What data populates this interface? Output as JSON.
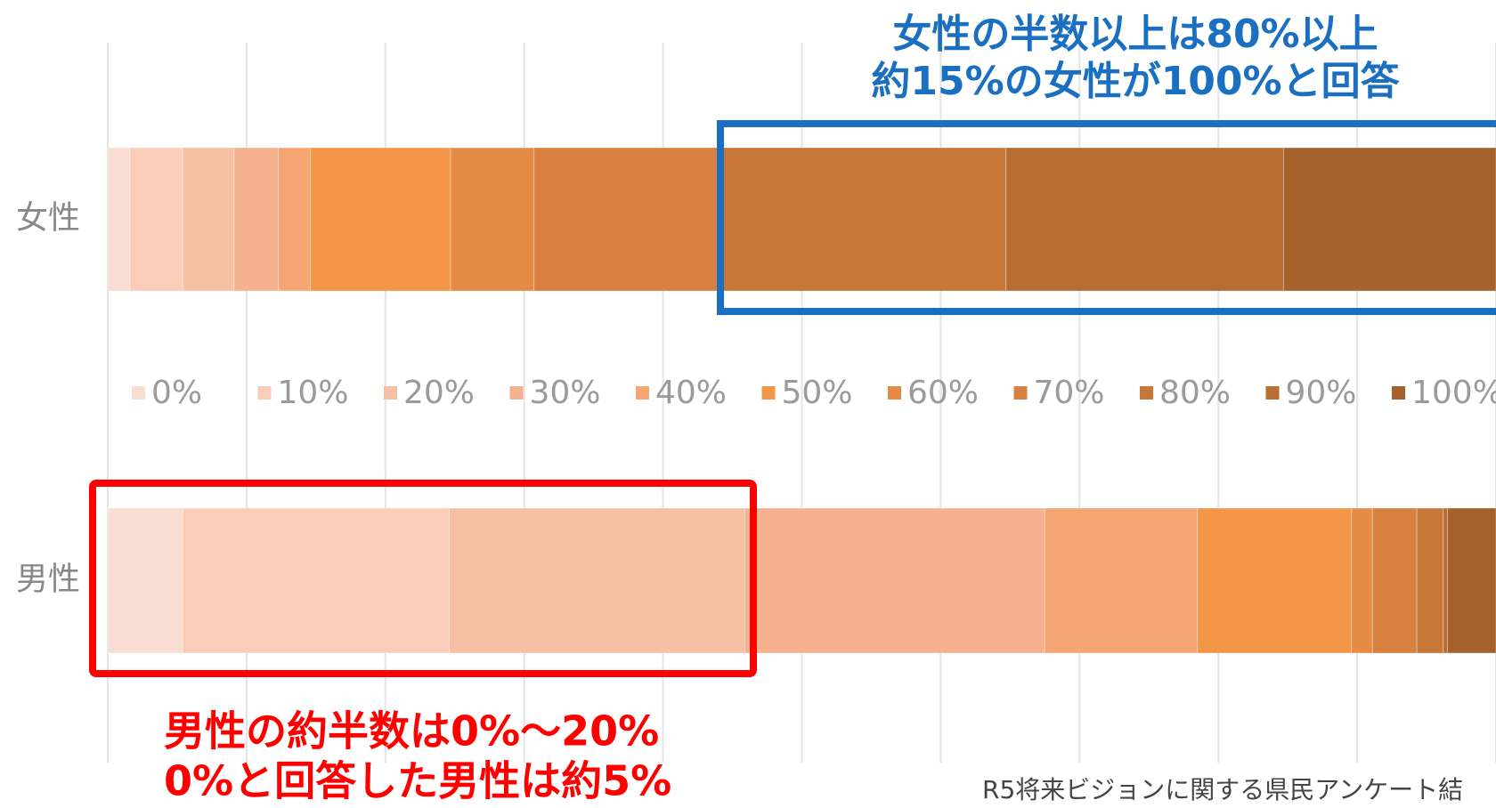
{
  "chart_data": {
    "type": "stacked_barh",
    "categories": [
      "女性",
      "男性"
    ],
    "series": [
      {
        "name": "0%",
        "color": "#f9ddd3",
        "values": [
          1.6,
          5.4
        ]
      },
      {
        "name": "10%",
        "color": "#f9cdb9",
        "values": [
          3.8,
          19.2
        ]
      },
      {
        "name": "20%",
        "color": "#f7c0a5",
        "values": [
          3.7,
          21.3
        ]
      },
      {
        "name": "30%",
        "color": "#f6b28e",
        "values": [
          3.2,
          21.6
        ]
      },
      {
        "name": "40%",
        "color": "#f4a572",
        "values": [
          2.3,
          11.0
        ]
      },
      {
        "name": "50%",
        "color": "#f39647",
        "values": [
          10.1,
          11.1
        ]
      },
      {
        "name": "60%",
        "color": "#e58b45",
        "values": [
          6.0,
          1.5
        ]
      },
      {
        "name": "70%",
        "color": "#d88040",
        "values": [
          13.5,
          3.2
        ]
      },
      {
        "name": "80%",
        "color": "#c87737",
        "values": [
          20.5,
          1.9
        ]
      },
      {
        "name": "90%",
        "color": "#b86d32",
        "values": [
          20.0,
          0.3
        ]
      },
      {
        "name": "100%",
        "color": "#a5622c",
        "values": [
          15.3,
          3.5
        ]
      }
    ],
    "xlim": [
      0,
      100
    ],
    "xticks": [
      0,
      10,
      20,
      30,
      40,
      50,
      60,
      70,
      80,
      90,
      100
    ],
    "grid": true,
    "annotations": [
      "女性の半数以上は80%以上",
      "約15%の女性が100%と回答",
      "男性の約半数は0%～20%",
      "0%と回答した男性は約5%"
    ],
    "source": "R5将来ビジョンに関する県民アンケート結"
  }
}
